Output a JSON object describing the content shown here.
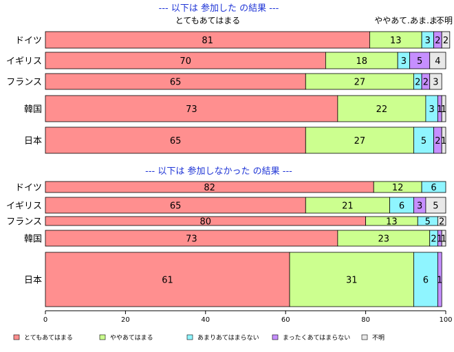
{
  "chart_data": {
    "type": "bar",
    "orientation": "horizontal",
    "stacked": "100%",
    "colors": {
      "とてもあてはまる": "#ff8f8f",
      "ややあてはまる": "#ccff8f",
      "あまりあてはまらない": "#8ff5ff",
      "まったくあてはまらない": "#c68fff",
      "不明": "#e8e8e8"
    },
    "xlim": [
      0,
      100
    ],
    "xticks": [
      "0",
      "20",
      "40",
      "60",
      "80",
      "100"
    ],
    "legend": {
      "placement": "bottom",
      "entries": [
        "とてもあてはまる",
        "ややあてはまる",
        "あまりあてはまらない",
        "まったくあてはまらない",
        "不明"
      ]
    },
    "panels": [
      {
        "title": "--- 以下は 参加した の結果 ---",
        "header_labels": [
          "とてもあてはまる",
          "ややあて..",
          "あま..",
          "ま..",
          "不明"
        ],
        "categories": [
          "ドイツ",
          "イギリス",
          "フランス",
          "韓国",
          "日本"
        ],
        "series": [
          {
            "name": "とてもあてはまる",
            "values": [
              81,
              70,
              65,
              73,
              65
            ]
          },
          {
            "name": "ややあてはまる",
            "values": [
              13,
              18,
              27,
              22,
              27
            ]
          },
          {
            "name": "あまりあてはまらない",
            "values": [
              3,
              3,
              2,
              3,
              5
            ]
          },
          {
            "name": "まったくあてはまらない",
            "values": [
              2,
              5,
              2,
              1,
              2
            ]
          },
          {
            "name": "不明",
            "values": [
              2,
              4,
              3,
              1,
              1
            ]
          }
        ]
      },
      {
        "title": "--- 以下は 参加しなかった の結果 ---",
        "categories": [
          "ドイツ",
          "イギリス",
          "フランス",
          "韓国",
          "日本"
        ],
        "series": [
          {
            "name": "とてもあてはまる",
            "values": [
              82,
              65,
              80,
              73,
              61
            ]
          },
          {
            "name": "ややあてはまる",
            "values": [
              12,
              21,
              13,
              23,
              31
            ]
          },
          {
            "name": "あまりあてはまらない",
            "values": [
              6,
              6,
              5,
              2,
              6
            ]
          },
          {
            "name": "まったくあてはまらない",
            "values": [
              0,
              3,
              0,
              1,
              1
            ]
          },
          {
            "name": "不明",
            "values": [
              0,
              5,
              2,
              1,
              0
            ]
          }
        ]
      }
    ]
  }
}
